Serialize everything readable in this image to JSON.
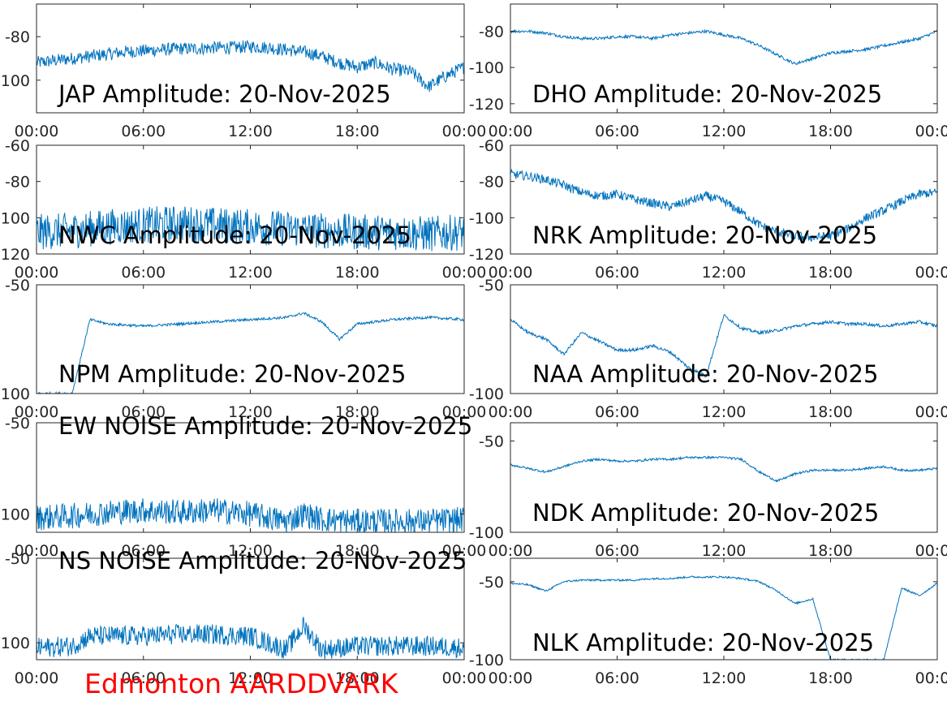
{
  "colors": {
    "trace": "#0072BD",
    "footer": "#FF0000",
    "axis": "#262626",
    "background": "#FFFFFF"
  },
  "footer_label": "Edmonton AARDDVARK",
  "chart_data": [
    {
      "type": "line",
      "title": "JAP Amplitude: 20-Nov-2025",
      "ylim": [
        -115,
        -65
      ],
      "yticks": [
        -80,
        -100
      ],
      "ytick_labels": [
        "-80",
        "-100"
      ],
      "xticks": [
        "00:00",
        "06:00",
        "12:00",
        "18:00",
        "00:00"
      ],
      "x": [
        0,
        1,
        2,
        3,
        4,
        5,
        6,
        7,
        8,
        9,
        10,
        11,
        12,
        13,
        14,
        15,
        16,
        17,
        18,
        19,
        20,
        21,
        22,
        23,
        24
      ],
      "y": [
        -92,
        -91,
        -90,
        -89,
        -88,
        -87,
        -86.5,
        -86,
        -85.5,
        -85.5,
        -85,
        -85,
        -84.5,
        -85,
        -86,
        -87,
        -89,
        -92,
        -94,
        -92,
        -95,
        -96,
        -103,
        -98,
        -94
      ],
      "noise": 3
    },
    {
      "type": "line",
      "title": "DHO Amplitude: 20-Nov-2025",
      "ylim": [
        -125,
        -65
      ],
      "yticks": [
        -80,
        -100,
        -120
      ],
      "ytick_labels": [
        "-80",
        "-100",
        "-120"
      ],
      "xticks": [
        "00:00",
        "06:00",
        "12:00",
        "18:00",
        "00:00"
      ],
      "x": [
        0,
        1,
        2,
        3,
        4,
        5,
        6,
        7,
        8,
        9,
        10,
        11,
        12,
        13,
        14,
        15,
        16,
        17,
        18,
        19,
        20,
        21,
        22,
        23,
        24
      ],
      "y": [
        -80,
        -80,
        -81,
        -83,
        -84,
        -84,
        -83,
        -83,
        -84,
        -82,
        -81,
        -80,
        -82,
        -84,
        -88,
        -93,
        -98,
        -95,
        -92,
        -91,
        -90,
        -88,
        -86,
        -84,
        -80
      ],
      "noise": 0.8
    },
    {
      "type": "line",
      "title": "NWC Amplitude: 20-Nov-2025",
      "ylim": [
        -120,
        -60
      ],
      "yticks": [
        -60,
        -80,
        -100,
        -120
      ],
      "ytick_labels": [
        "-60",
        "-80",
        "-100",
        "-120"
      ],
      "xticks": [
        "00:00",
        "06:00",
        "12:00",
        "18:00",
        "00:00"
      ],
      "x": [
        0,
        2,
        4,
        6,
        8,
        10,
        12,
        14,
        16,
        18,
        20,
        22,
        24
      ],
      "y": [
        -108,
        -107,
        -105,
        -104,
        -103,
        -104,
        -105,
        -106,
        -107,
        -108,
        -108,
        -109,
        -108
      ],
      "noise": 10
    },
    {
      "type": "line",
      "title": "NRK Amplitude: 20-Nov-2025",
      "ylim": [
        -120,
        -60
      ],
      "yticks": [
        -60,
        -80,
        -100,
        -120
      ],
      "ytick_labels": [
        "-60",
        "-80",
        "-100",
        "-120"
      ],
      "xticks": [
        "00:00",
        "06:00",
        "12:00",
        "18:00",
        "00:00"
      ],
      "x": [
        0,
        1,
        2,
        3,
        4,
        5,
        6,
        7,
        8,
        9,
        10,
        11,
        12,
        13,
        14,
        15,
        16,
        17,
        18,
        19,
        20,
        21,
        22,
        23,
        24
      ],
      "y": [
        -76,
        -77,
        -79,
        -82,
        -86,
        -88,
        -87,
        -90,
        -92,
        -94,
        -91,
        -88,
        -91,
        -97,
        -104,
        -108,
        -110,
        -111,
        -110,
        -106,
        -100,
        -96,
        -91,
        -87,
        -86
      ],
      "noise": 2.5
    },
    {
      "type": "line",
      "title": "NPM Amplitude: 20-Nov-2025",
      "ylim": [
        -100,
        -50
      ],
      "yticks": [
        -50,
        -100
      ],
      "ytick_labels": [
        "-50",
        "-100"
      ],
      "xticks": [
        "00:00",
        "06:00",
        "12:00",
        "18:00",
        "00:00"
      ],
      "x": [
        0,
        2,
        3,
        4,
        6,
        8,
        10,
        12,
        14,
        15,
        16,
        17,
        18,
        20,
        22,
        24
      ],
      "y": [
        -100,
        -100,
        -66,
        -68,
        -69,
        -68,
        -67,
        -66,
        -65,
        -63,
        -67,
        -75,
        -68,
        -66,
        -65,
        -66
      ],
      "noise": 0.6
    },
    {
      "type": "line",
      "title": "NAA Amplitude: 20-Nov-2025",
      "ylim": [
        -100,
        -50
      ],
      "yticks": [
        -50,
        -100
      ],
      "ytick_labels": [
        "-50",
        "-100"
      ],
      "xticks": [
        "00:00",
        "06:00",
        "12:00",
        "18:00",
        "00:00"
      ],
      "x": [
        0,
        1,
        2,
        3,
        4,
        5,
        6,
        7,
        8,
        9,
        10,
        11,
        12,
        13,
        14,
        15,
        16,
        17,
        18,
        19,
        20,
        21,
        22,
        23,
        24
      ],
      "y": [
        -66,
        -72,
        -75,
        -82,
        -72,
        -76,
        -80,
        -80,
        -78,
        -81,
        -88,
        -92,
        -64,
        -70,
        -72,
        -71,
        -69,
        -68,
        -67,
        -68,
        -68,
        -69,
        -68,
        -67,
        -69
      ],
      "noise": 0.7
    },
    {
      "type": "line",
      "title": "EW NOISE Amplitude: 20-Nov-2025",
      "ylim": [
        -110,
        -50
      ],
      "yticks": [
        -50,
        -100
      ],
      "ytick_labels": [
        "-50",
        "-100"
      ],
      "xticks": [
        "00:00",
        "06:00",
        "12:00",
        "18:00",
        "00:00"
      ],
      "x": [
        0,
        2,
        4,
        6,
        8,
        10,
        12,
        13,
        14,
        15,
        16,
        18,
        20,
        22,
        24
      ],
      "y": [
        -102,
        -101,
        -99,
        -98,
        -99,
        -98,
        -100,
        -102,
        -104,
        -100,
        -103,
        -104,
        -104,
        -104,
        -103
      ],
      "noise": 7
    },
    {
      "type": "line",
      "title": "NDK Amplitude: 20-Nov-2025",
      "ylim": [
        -100,
        -40
      ],
      "yticks": [
        -50,
        -100
      ],
      "ytick_labels": [
        "-50",
        "-100"
      ],
      "xticks": [
        "00:00",
        "06:00",
        "12:00",
        "18:00",
        "00:00"
      ],
      "x": [
        0,
        1,
        2,
        3,
        4,
        5,
        6,
        7,
        8,
        9,
        10,
        11,
        12,
        13,
        14,
        15,
        16,
        17,
        18,
        19,
        20,
        21,
        22,
        23,
        24
      ],
      "y": [
        -63,
        -65,
        -67,
        -64,
        -61,
        -60,
        -61,
        -61,
        -60,
        -60,
        -59,
        -59,
        -59,
        -60,
        -67,
        -72,
        -68,
        -66,
        -66,
        -66,
        -65,
        -64,
        -66,
        -66,
        -65
      ],
      "noise": 0.6
    },
    {
      "type": "line",
      "title": "NS NOISE Amplitude: 20-Nov-2025",
      "ylim": [
        -110,
        -50
      ],
      "yticks": [
        -50,
        -100
      ],
      "ytick_labels": [
        "-50",
        "-100"
      ],
      "xticks": [
        "00:00",
        "06:00",
        "12:00",
        "18:00",
        "00:00"
      ],
      "x": [
        0,
        2,
        3,
        4,
        6,
        8,
        10,
        12,
        13,
        14,
        15,
        16,
        18,
        20,
        22,
        24
      ],
      "y": [
        -103,
        -102,
        -96,
        -96,
        -96,
        -95,
        -95,
        -96,
        -100,
        -104,
        -90,
        -104,
        -102,
        -102,
        -102,
        -103
      ],
      "noise": 6
    },
    {
      "type": "line",
      "title": "NLK Amplitude: 20-Nov-2025",
      "ylim": [
        -100,
        -35
      ],
      "yticks": [
        -50,
        -100
      ],
      "ytick_labels": [
        "-50",
        "-100"
      ],
      "xticks": [
        "00:00",
        "06:00",
        "12:00",
        "18:00",
        "00:00"
      ],
      "x": [
        0,
        1,
        2,
        3,
        4,
        5,
        6,
        7,
        8,
        9,
        10,
        11,
        12,
        13,
        14,
        15,
        16,
        17,
        18,
        19,
        20,
        21,
        22,
        23,
        24
      ],
      "y": [
        -51,
        -52,
        -56,
        -50,
        -49,
        -49,
        -49,
        -49,
        -48,
        -48,
        -47,
        -47,
        -47,
        -48,
        -50,
        -56,
        -64,
        -61,
        -100,
        -100,
        -100,
        -100,
        -54,
        -59,
        -51
      ],
      "noise": 0.6
    }
  ]
}
